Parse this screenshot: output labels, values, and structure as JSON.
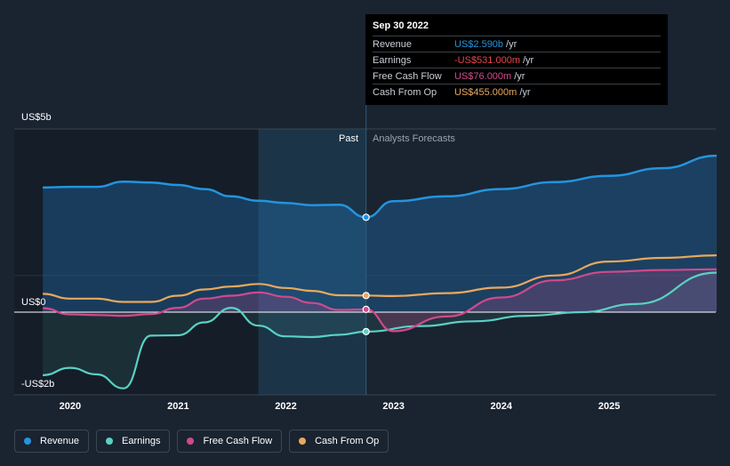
{
  "tooltip": {
    "date": "Sep 30 2022",
    "rows": [
      {
        "label": "Revenue",
        "value": "US$2.590b",
        "unit": "/yr",
        "color": "#2394df"
      },
      {
        "label": "Earnings",
        "value": "-US$531.000m",
        "unit": "/yr",
        "color": "#e8464a"
      },
      {
        "label": "Free Cash Flow",
        "value": "US$76.000m",
        "unit": "/yr",
        "color": "#d04a8c"
      },
      {
        "label": "Cash From Op",
        "value": "US$455.000m",
        "unit": "/yr",
        "color": "#e8a85d"
      }
    ]
  },
  "y_labels": {
    "top": "US$5b",
    "zero": "US$0",
    "bottom": "-US$2b"
  },
  "regions": {
    "past": "Past",
    "forecast": "Analysts Forecasts"
  },
  "legend": [
    {
      "label": "Revenue",
      "color": "#2394df"
    },
    {
      "label": "Earnings",
      "color": "#5ad1c3"
    },
    {
      "label": "Free Cash Flow",
      "color": "#d04a8c"
    },
    {
      "label": "Cash From Op",
      "color": "#e8a85d"
    }
  ],
  "chart_data": {
    "type": "line",
    "x_ticks": [
      "2020",
      "2021",
      "2022",
      "2023",
      "2024",
      "2025"
    ],
    "ylim": [
      -2,
      5
    ],
    "units": "US$ billions",
    "divider_date": "2022-09-30",
    "series": [
      {
        "name": "Revenue",
        "color": "#2394df",
        "filled": true,
        "points": [
          [
            "2019-09-30",
            3.4
          ],
          [
            "2019-12-31",
            3.42
          ],
          [
            "2020-03-31",
            3.42
          ],
          [
            "2020-06-30",
            3.56
          ],
          [
            "2020-09-30",
            3.54
          ],
          [
            "2020-12-31",
            3.47
          ],
          [
            "2021-03-31",
            3.36
          ],
          [
            "2021-06-30",
            3.16
          ],
          [
            "2021-09-30",
            3.04
          ],
          [
            "2021-12-31",
            2.98
          ],
          [
            "2022-03-31",
            2.92
          ],
          [
            "2022-06-30",
            2.93
          ],
          [
            "2022-09-30",
            2.59
          ],
          [
            "2022-12-31",
            3.03
          ],
          [
            "2023-06-30",
            3.16
          ],
          [
            "2023-12-31",
            3.36
          ],
          [
            "2024-06-30",
            3.55
          ],
          [
            "2024-12-31",
            3.72
          ],
          [
            "2025-06-30",
            3.93
          ],
          [
            "2025-12-31",
            4.27
          ]
        ]
      },
      {
        "name": "Earnings",
        "color": "#5ad1c3",
        "filled": true,
        "points": [
          [
            "2019-09-30",
            -1.72
          ],
          [
            "2019-12-31",
            -1.52
          ],
          [
            "2020-03-31",
            -1.7
          ],
          [
            "2020-06-30",
            -2.08
          ],
          [
            "2020-09-30",
            -0.64
          ],
          [
            "2020-12-31",
            -0.63
          ],
          [
            "2021-03-31",
            -0.28
          ],
          [
            "2021-06-30",
            0.12
          ],
          [
            "2021-09-30",
            -0.37
          ],
          [
            "2021-12-31",
            -0.66
          ],
          [
            "2022-03-31",
            -0.68
          ],
          [
            "2022-06-30",
            -0.62
          ],
          [
            "2022-09-30",
            -0.531
          ],
          [
            "2023-03-31",
            -0.38
          ],
          [
            "2023-09-30",
            -0.25
          ],
          [
            "2024-03-31",
            -0.1
          ],
          [
            "2024-09-30",
            0.0
          ],
          [
            "2025-03-31",
            0.22
          ],
          [
            "2025-12-31",
            1.08
          ]
        ]
      },
      {
        "name": "Free Cash Flow",
        "color": "#d04a8c",
        "filled": true,
        "points": [
          [
            "2019-09-30",
            0.11
          ],
          [
            "2019-12-31",
            -0.06
          ],
          [
            "2020-03-31",
            -0.08
          ],
          [
            "2020-06-30",
            -0.1
          ],
          [
            "2020-09-30",
            -0.05
          ],
          [
            "2020-12-31",
            0.12
          ],
          [
            "2021-03-31",
            0.37
          ],
          [
            "2021-06-30",
            0.45
          ],
          [
            "2021-09-30",
            0.54
          ],
          [
            "2021-12-31",
            0.42
          ],
          [
            "2022-03-31",
            0.25
          ],
          [
            "2022-06-30",
            0.06
          ],
          [
            "2022-09-30",
            0.076
          ],
          [
            "2022-12-31",
            -0.52
          ],
          [
            "2023-06-30",
            -0.12
          ],
          [
            "2023-12-31",
            0.4
          ],
          [
            "2024-06-30",
            0.87
          ],
          [
            "2024-12-31",
            1.1
          ],
          [
            "2025-06-30",
            1.15
          ],
          [
            "2025-12-31",
            1.17
          ]
        ]
      },
      {
        "name": "Cash From Op",
        "color": "#e8a85d",
        "filled": false,
        "points": [
          [
            "2019-09-30",
            0.5
          ],
          [
            "2019-12-31",
            0.37
          ],
          [
            "2020-03-31",
            0.37
          ],
          [
            "2020-06-30",
            0.28
          ],
          [
            "2020-09-30",
            0.28
          ],
          [
            "2020-12-31",
            0.45
          ],
          [
            "2021-03-31",
            0.62
          ],
          [
            "2021-06-30",
            0.7
          ],
          [
            "2021-09-30",
            0.77
          ],
          [
            "2021-12-31",
            0.66
          ],
          [
            "2022-03-31",
            0.58
          ],
          [
            "2022-06-30",
            0.46
          ],
          [
            "2022-09-30",
            0.455
          ],
          [
            "2022-12-31",
            0.44
          ],
          [
            "2023-06-30",
            0.52
          ],
          [
            "2023-12-31",
            0.67
          ],
          [
            "2024-06-30",
            1.0
          ],
          [
            "2024-12-31",
            1.38
          ],
          [
            "2025-06-30",
            1.48
          ],
          [
            "2025-12-31",
            1.55
          ]
        ]
      }
    ]
  }
}
